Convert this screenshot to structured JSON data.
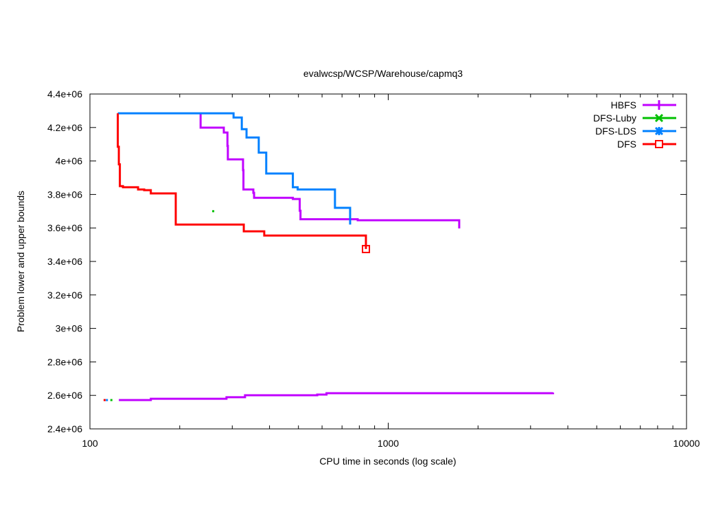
{
  "chart_data": {
    "type": "line",
    "title": "evalwcsp/WCSP/Warehouse/capmq3",
    "xlabel": "CPU time in seconds (log scale)",
    "ylabel": "Problem lower and upper bounds",
    "xscale": "log",
    "xlim": [
      100,
      10000
    ],
    "ylim": [
      2400000,
      4400000
    ],
    "x_ticks": [
      {
        "value": 100,
        "label": "100"
      },
      {
        "value": 1000,
        "label": "1000"
      },
      {
        "value": 10000,
        "label": "10000"
      }
    ],
    "y_ticks": [
      {
        "value": 2400000,
        "label": "2.4e+06"
      },
      {
        "value": 2600000,
        "label": "2.6e+06"
      },
      {
        "value": 2800000,
        "label": "2.8e+06"
      },
      {
        "value": 3000000,
        "label": "3e+06"
      },
      {
        "value": 3200000,
        "label": "3.2e+06"
      },
      {
        "value": 3400000,
        "label": "3.4e+06"
      },
      {
        "value": 3600000,
        "label": "3.6e+06"
      },
      {
        "value": 3800000,
        "label": "3.8e+06"
      },
      {
        "value": 4000000,
        "label": "4e+06"
      },
      {
        "value": 4200000,
        "label": "4.2e+06"
      },
      {
        "value": 4400000,
        "label": "4.4e+06"
      }
    ],
    "grid": false,
    "legend_position": "top-right",
    "series": [
      {
        "name": "HBFS",
        "color": "#c000ff",
        "marker": "plus",
        "step": true,
        "segments": [
          {
            "role": "upper",
            "points": [
              [
                235,
                4285000
              ],
              [
                235,
                4199000
              ],
              [
                281,
                4199000
              ],
              [
                281,
                4170000
              ],
              [
                289,
                4170000
              ],
              [
                289,
                4090000
              ],
              [
                290,
                4090000
              ],
              [
                290,
                4010000
              ],
              [
                326,
                4010000
              ],
              [
                326,
                3945000
              ],
              [
                327,
                3945000
              ],
              [
                327,
                3830000
              ],
              [
                353,
                3830000
              ],
              [
                353,
                3810000
              ],
              [
                355,
                3810000
              ],
              [
                355,
                3780000
              ],
              [
                479,
                3780000
              ],
              [
                479,
                3773000
              ],
              [
                505,
                3773000
              ],
              [
                505,
                3703000
              ],
              [
                508,
                3703000
              ],
              [
                508,
                3652000
              ],
              [
                790,
                3652000
              ],
              [
                790,
                3646000
              ],
              [
                1730,
                3646000
              ],
              [
                1730,
                3597000
              ]
            ]
          },
          {
            "role": "lower",
            "points": [
              [
                125,
                2572000
              ],
              [
                160,
                2572000
              ],
              [
                160,
                2580000
              ],
              [
                287,
                2580000
              ],
              [
                287,
                2589000
              ],
              [
                331,
                2589000
              ],
              [
                331,
                2601000
              ],
              [
                578,
                2601000
              ],
              [
                578,
                2605000
              ],
              [
                621,
                2605000
              ],
              [
                621,
                2613000
              ],
              [
                3570,
                2613000
              ],
              [
                3570,
                2617000
              ]
            ]
          }
        ],
        "end_marker": null
      },
      {
        "name": "DFS-Luby",
        "color": "#00c000",
        "marker": "cross",
        "step": true,
        "segments": [
          {
            "role": "upper",
            "points": [
              [
                259,
                3700000
              ]
            ]
          },
          {
            "role": "lower",
            "points": [
              [
                118,
                2572000
              ]
            ]
          }
        ],
        "end_marker": null
      },
      {
        "name": "DFS-LDS",
        "color": "#0080ff",
        "marker": "star",
        "step": true,
        "segments": [
          {
            "role": "upper",
            "points": [
              [
                124,
                4285000
              ],
              [
                303,
                4285000
              ],
              [
                303,
                4260000
              ],
              [
                323,
                4260000
              ],
              [
                323,
                4190000
              ],
              [
                335,
                4190000
              ],
              [
                335,
                4140000
              ],
              [
                368,
                4140000
              ],
              [
                368,
                4050000
              ],
              [
                390,
                4050000
              ],
              [
                390,
                3925000
              ],
              [
                479,
                3925000
              ],
              [
                479,
                3843000
              ],
              [
                497,
                3843000
              ],
              [
                497,
                3830000
              ],
              [
                663,
                3830000
              ],
              [
                663,
                3720000
              ],
              [
                745,
                3720000
              ],
              [
                745,
                3620000
              ]
            ]
          },
          {
            "role": "lower",
            "points": [
              [
                114,
                2572000
              ]
            ]
          }
        ],
        "end_marker": null
      },
      {
        "name": "DFS",
        "color": "#ff0000",
        "marker": "square",
        "step": true,
        "segments": [
          {
            "role": "upper",
            "points": [
              [
                124,
                4285000
              ],
              [
                124,
                4085000
              ],
              [
                125,
                4085000
              ],
              [
                125,
                3980000
              ],
              [
                126,
                3980000
              ],
              [
                126,
                3850000
              ],
              [
                129,
                3850000
              ],
              [
                129,
                3843000
              ],
              [
                145,
                3843000
              ],
              [
                145,
                3830000
              ],
              [
                152,
                3830000
              ],
              [
                152,
                3826000
              ],
              [
                160,
                3826000
              ],
              [
                160,
                3806000
              ],
              [
                194,
                3806000
              ],
              [
                194,
                3620000
              ],
              [
                328,
                3620000
              ],
              [
                328,
                3580000
              ],
              [
                384,
                3580000
              ],
              [
                384,
                3555000
              ],
              [
                842,
                3555000
              ],
              [
                842,
                3474000
              ]
            ]
          },
          {
            "role": "lower",
            "points": [
              [
                112,
                2572000
              ]
            ]
          }
        ],
        "end_marker": [
          842,
          3474000
        ]
      }
    ]
  }
}
